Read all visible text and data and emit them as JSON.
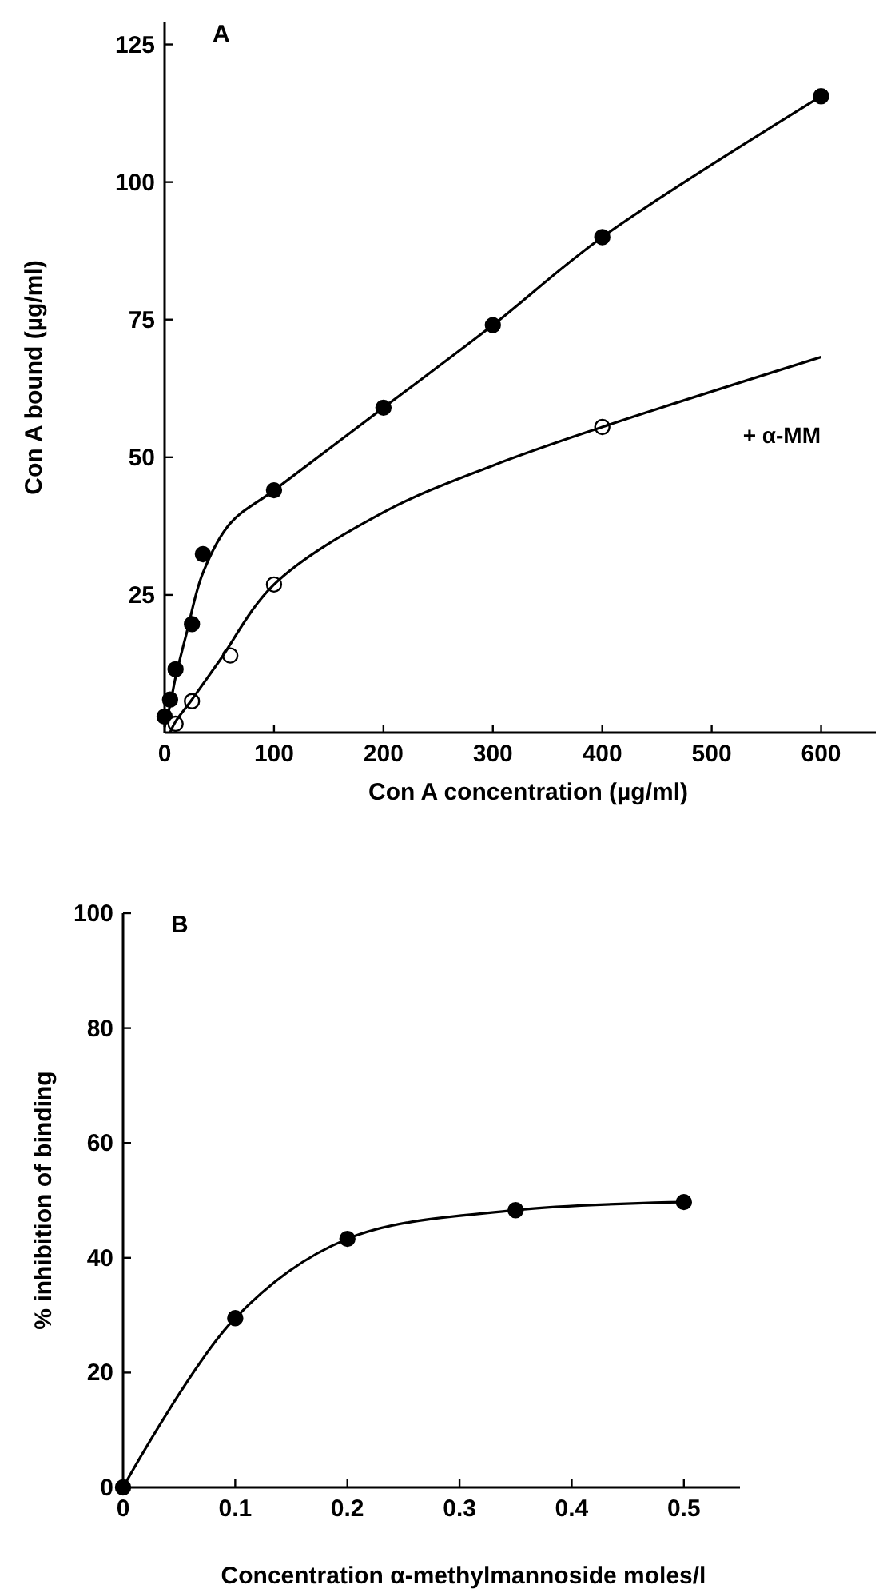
{
  "chart_data": [
    {
      "type": "scatter",
      "title": "A",
      "xlabel": "Con A concentration (µg/ml)",
      "ylabel": "Con A bound (µg/ml)",
      "xlim": [
        0,
        650
      ],
      "ylim": [
        0,
        129
      ],
      "xticks": [
        0,
        100,
        200,
        300,
        400,
        500,
        600
      ],
      "yticks": [
        25,
        50,
        75,
        100,
        125
      ],
      "marker": "circle",
      "grid": false,
      "series": [
        {
          "color": "#000000",
          "x": [
            0,
            5,
            10,
            25,
            35,
            100,
            200,
            300,
            400,
            600
          ],
          "values": [
            2.9,
            6,
            11.5,
            19.7,
            32.4,
            44,
            59,
            74,
            90,
            115.6
          ]
        },
        {
          "color": "#ffffff",
          "x": [
            10,
            25,
            60,
            100,
            400
          ],
          "values": [
            1.6,
            5.7,
            14,
            26.9,
            55.5
          ]
        },
        {
          "type": "line",
          "marker": "none",
          "color": "#000000",
          "x": [
            0,
            5,
            10,
            20,
            35,
            60,
            100,
            200,
            300,
            400,
            600
          ],
          "values": [
            1,
            5,
            10,
            18,
            29,
            38,
            44,
            59,
            74,
            90,
            115.6
          ]
        },
        {
          "type": "line",
          "marker": "none",
          "name": "+ α-MM",
          "color": "#000000",
          "x": [
            5,
            10,
            25,
            50,
            100,
            200,
            300,
            400,
            600
          ],
          "values": [
            0,
            2,
            6,
            13,
            26.9,
            40,
            48.5,
            55.5,
            68.2
          ]
        }
      ]
    },
    {
      "type": "line",
      "title": "B",
      "xlabel": "Concentration α-methylmannoside moles/l",
      "ylabel": "% inhibition of binding",
      "xlim": [
        0,
        0.55
      ],
      "ylim": [
        0,
        100
      ],
      "xticks": [
        0,
        0.1,
        0.2,
        0.3,
        0.4,
        0.5
      ],
      "yticks": [
        0,
        20,
        40,
        60,
        80,
        100
      ],
      "marker": "circle",
      "grid": false,
      "series": [
        {
          "color": "#000000",
          "x": [
            0,
            0.1,
            0.2,
            0.35,
            0.5
          ],
          "values": [
            0,
            29.5,
            43.3,
            48.3,
            49.7
          ]
        }
      ]
    }
  ]
}
